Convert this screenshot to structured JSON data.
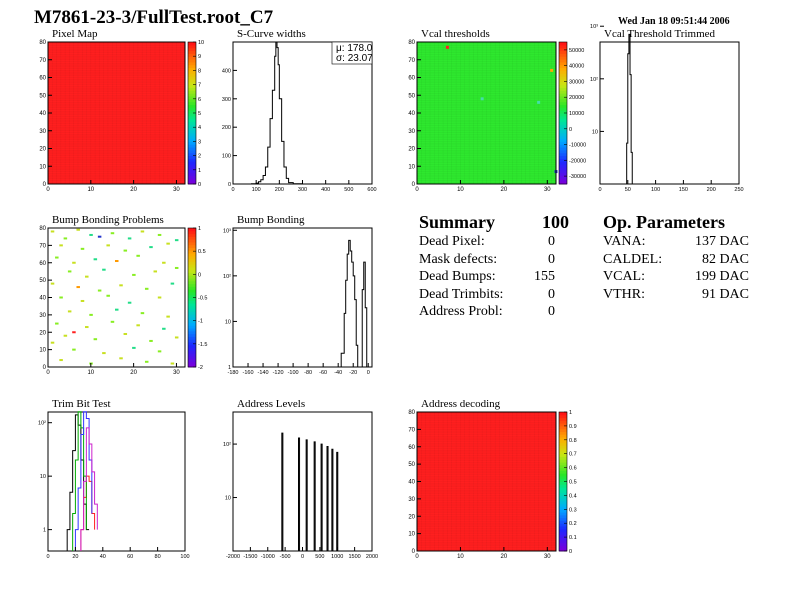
{
  "header": {
    "title": "M7861-23-3/FullTest.root_C7",
    "date": "Wed Jan 18 09:51:44 2006"
  },
  "summary": {
    "heading": "Summary",
    "total": "100",
    "rows": [
      {
        "label": "Dead Pixel:",
        "value": "0"
      },
      {
        "label": "Mask defects:",
        "value": "0"
      },
      {
        "label": "Dead Bumps:",
        "value": "155"
      },
      {
        "label": "Dead Trimbits:",
        "value": "0"
      },
      {
        "label": "Address Probl:",
        "value": "0"
      }
    ]
  },
  "op_params": {
    "heading": "Op. Parameters",
    "rows": [
      {
        "label": "VANA:",
        "value": "137 DAC"
      },
      {
        "label": "CALDEL:",
        "value": "82 DAC"
      },
      {
        "label": "VCAL:",
        "value": "199 DAC"
      },
      {
        "label": "VTHR:",
        "value": "91 DAC"
      }
    ]
  },
  "chart_data": [
    {
      "id": "pixel-map",
      "type": "heatmap",
      "title": "Pixel Map",
      "xlim": [
        0,
        32
      ],
      "ylim": [
        0,
        80
      ],
      "xticks": [
        "0",
        "10",
        "20",
        "30"
      ],
      "yticks": [
        "0",
        "10",
        "20",
        "30",
        "40",
        "50",
        "60",
        "70",
        "80"
      ],
      "zlim": [
        0,
        10
      ],
      "zticks": [
        "0",
        "1",
        "2",
        "3",
        "4",
        "5",
        "6",
        "7",
        "8",
        "9",
        "10"
      ],
      "fill_value": 10,
      "fill_color": "#ff1f1f"
    },
    {
      "id": "scurve",
      "type": "line",
      "title": "S-Curve widths",
      "xlim": [
        0,
        600
      ],
      "ylim": [
        0,
        500
      ],
      "xticks": [
        "0",
        "100",
        "200",
        "300",
        "400",
        "500",
        "600"
      ],
      "yticks": [
        "0",
        "100",
        "200",
        "300",
        "400"
      ],
      "stats": {
        "mu": "μ: 178.0",
        "sigma": "σ: 23.07"
      },
      "x": [
        60,
        80,
        100,
        110,
        120,
        130,
        140,
        150,
        160,
        170,
        180,
        185,
        190,
        195,
        200,
        210,
        220,
        230,
        240,
        260,
        300
      ],
      "y": [
        0,
        1,
        3,
        8,
        15,
        30,
        60,
        130,
        230,
        330,
        450,
        500,
        480,
        420,
        300,
        150,
        60,
        20,
        5,
        1,
        0
      ]
    },
    {
      "id": "vcal-thresholds",
      "type": "heatmap",
      "title": "Vcal thresholds",
      "xlim": [
        0,
        32
      ],
      "ylim": [
        0,
        80
      ],
      "xticks": [
        "0",
        "10",
        "20",
        "30"
      ],
      "yticks": [
        "0",
        "10",
        "20",
        "30",
        "40",
        "50",
        "60",
        "70",
        "80"
      ],
      "zlim": [
        -35000,
        55000
      ],
      "zticks": [
        "-30000",
        "-20000",
        "-10000",
        "0",
        "10000",
        "20000",
        "30000",
        "40000",
        "50000"
      ],
      "fill_value": 0,
      "fill_color": "#2ee82e",
      "outliers": [
        {
          "x": 7,
          "y": 77,
          "color": "#ff2020"
        },
        {
          "x": 31,
          "y": 64,
          "color": "#ffaa00"
        },
        {
          "x": 15,
          "y": 48,
          "color": "#44ddaa"
        },
        {
          "x": 28,
          "y": 46,
          "color": "#44ddaa"
        },
        {
          "x": 32,
          "y": 7,
          "color": "#2233cc"
        }
      ]
    },
    {
      "id": "vcal-trimmed",
      "type": "line",
      "title": "Vcal Threshold Trimmed",
      "scale": "log",
      "xlim": [
        0,
        250
      ],
      "ylim_decades": [
        0,
        2.7
      ],
      "xticks": [
        "0",
        "50",
        "100",
        "150",
        "200",
        "250"
      ],
      "yticks": [
        "10",
        "10²",
        "10³"
      ],
      "x": [
        45,
        48,
        50,
        52,
        54,
        56,
        58
      ],
      "y": [
        1,
        6,
        300,
        700,
        120,
        4,
        1
      ]
    },
    {
      "id": "bump-problems",
      "type": "heatmap",
      "title": "Bump Bonding Problems",
      "xlim": [
        0,
        32
      ],
      "ylim": [
        0,
        80
      ],
      "xticks": [
        "0",
        "10",
        "20",
        "30"
      ],
      "yticks": [
        "0",
        "10",
        "20",
        "30",
        "40",
        "50",
        "60",
        "70",
        "80"
      ],
      "zlim": [
        -2,
        1
      ],
      "zticks": [
        "-2",
        "-1.5",
        "-1",
        "-0.5",
        "0",
        "0.5",
        "1"
      ],
      "fill_color": "#ffffff",
      "scatter_points": [
        {
          "x": 1,
          "y": 78,
          "c": "#c8e020"
        },
        {
          "x": 4,
          "y": 74,
          "c": "#88ee22"
        },
        {
          "x": 7,
          "y": 79,
          "c": "#c8e020"
        },
        {
          "x": 10,
          "y": 76,
          "c": "#22dd88"
        },
        {
          "x": 12,
          "y": 75,
          "c": "#2233cc"
        },
        {
          "x": 15,
          "y": 77,
          "c": "#88ee22"
        },
        {
          "x": 19,
          "y": 74,
          "c": "#22dd88"
        },
        {
          "x": 22,
          "y": 78,
          "c": "#c8e020"
        },
        {
          "x": 26,
          "y": 76,
          "c": "#88ee22"
        },
        {
          "x": 30,
          "y": 73,
          "c": "#22dd88"
        },
        {
          "x": 3,
          "y": 70,
          "c": "#c8e020"
        },
        {
          "x": 8,
          "y": 68,
          "c": "#88ee22"
        },
        {
          "x": 14,
          "y": 70,
          "c": "#c8e020"
        },
        {
          "x": 18,
          "y": 67,
          "c": "#88ee22"
        },
        {
          "x": 24,
          "y": 69,
          "c": "#22dd88"
        },
        {
          "x": 28,
          "y": 71,
          "c": "#c8e020"
        },
        {
          "x": 2,
          "y": 63,
          "c": "#88ee22"
        },
        {
          "x": 6,
          "y": 60,
          "c": "#c8e020"
        },
        {
          "x": 11,
          "y": 62,
          "c": "#22dd88"
        },
        {
          "x": 16,
          "y": 61,
          "c": "#ff9900"
        },
        {
          "x": 21,
          "y": 64,
          "c": "#88ee22"
        },
        {
          "x": 27,
          "y": 60,
          "c": "#c8e020"
        },
        {
          "x": 5,
          "y": 55,
          "c": "#88ee22"
        },
        {
          "x": 9,
          "y": 52,
          "c": "#c8e020"
        },
        {
          "x": 13,
          "y": 56,
          "c": "#22dd88"
        },
        {
          "x": 20,
          "y": 53,
          "c": "#88ee22"
        },
        {
          "x": 25,
          "y": 55,
          "c": "#c8e020"
        },
        {
          "x": 30,
          "y": 57,
          "c": "#88ee22"
        },
        {
          "x": 1,
          "y": 48,
          "c": "#c8e020"
        },
        {
          "x": 7,
          "y": 46,
          "c": "#ff9900"
        },
        {
          "x": 12,
          "y": 44,
          "c": "#88ee22"
        },
        {
          "x": 17,
          "y": 47,
          "c": "#c8e020"
        },
        {
          "x": 23,
          "y": 45,
          "c": "#88ee22"
        },
        {
          "x": 29,
          "y": 48,
          "c": "#22dd88"
        },
        {
          "x": 3,
          "y": 40,
          "c": "#88ee22"
        },
        {
          "x": 8,
          "y": 38,
          "c": "#c8e020"
        },
        {
          "x": 14,
          "y": 41,
          "c": "#88ee22"
        },
        {
          "x": 19,
          "y": 37,
          "c": "#22dd88"
        },
        {
          "x": 26,
          "y": 40,
          "c": "#c8e020"
        },
        {
          "x": 5,
          "y": 32,
          "c": "#c8e020"
        },
        {
          "x": 10,
          "y": 30,
          "c": "#88ee22"
        },
        {
          "x": 16,
          "y": 33,
          "c": "#22dd88"
        },
        {
          "x": 22,
          "y": 31,
          "c": "#88ee22"
        },
        {
          "x": 28,
          "y": 29,
          "c": "#c8e020"
        },
        {
          "x": 2,
          "y": 25,
          "c": "#88ee22"
        },
        {
          "x": 9,
          "y": 23,
          "c": "#c8e020"
        },
        {
          "x": 15,
          "y": 26,
          "c": "#88ee22"
        },
        {
          "x": 21,
          "y": 24,
          "c": "#c8e020"
        },
        {
          "x": 27,
          "y": 22,
          "c": "#22dd88"
        },
        {
          "x": 4,
          "y": 18,
          "c": "#c8e020"
        },
        {
          "x": 11,
          "y": 16,
          "c": "#88ee22"
        },
        {
          "x": 18,
          "y": 19,
          "c": "#c8e020"
        },
        {
          "x": 24,
          "y": 15,
          "c": "#88ee22"
        },
        {
          "x": 30,
          "y": 17,
          "c": "#c8e020"
        },
        {
          "x": 6,
          "y": 10,
          "c": "#88ee22"
        },
        {
          "x": 13,
          "y": 8,
          "c": "#c8e020"
        },
        {
          "x": 20,
          "y": 11,
          "c": "#22dd88"
        },
        {
          "x": 26,
          "y": 9,
          "c": "#88ee22"
        },
        {
          "x": 3,
          "y": 4,
          "c": "#c8e020"
        },
        {
          "x": 10,
          "y": 2,
          "c": "#88ee22"
        },
        {
          "x": 17,
          "y": 5,
          "c": "#c8e020"
        },
        {
          "x": 23,
          "y": 3,
          "c": "#88ee22"
        },
        {
          "x": 29,
          "y": 2,
          "c": "#c8e020"
        },
        {
          "x": 6,
          "y": 20,
          "c": "#ff2020"
        },
        {
          "x": 1,
          "y": 14,
          "c": "#c8e020"
        }
      ]
    },
    {
      "id": "bump-bonding",
      "type": "line",
      "title": "Bump Bonding",
      "scale": "log",
      "xlim": [
        -180,
        5
      ],
      "ylim_decades": [
        0,
        3.05
      ],
      "xticks": [
        "-180",
        "-160",
        "-140",
        "-120",
        "-100",
        "-80",
        "-60",
        "-40",
        "-20",
        "0"
      ],
      "yticks": [
        "1",
        "10",
        "10²",
        "10³"
      ],
      "x": [
        -180,
        -176,
        -174,
        -168,
        -166,
        -40,
        -36,
        -32,
        -30,
        -28,
        -26,
        -24,
        -22,
        -20,
        -18,
        -16,
        -14,
        -12,
        -10,
        -8,
        -6,
        -4,
        -2,
        0
      ],
      "y": [
        0,
        1,
        0,
        1,
        0,
        0,
        2,
        15,
        80,
        300,
        600,
        350,
        200,
        100,
        30,
        3,
        0,
        0,
        0,
        50,
        200,
        20,
        1,
        0
      ]
    },
    {
      "id": "trim-bit",
      "type": "line",
      "title": "Trim Bit Test",
      "scale": "log",
      "xlim": [
        0,
        100
      ],
      "ylim_decades": [
        -0.4,
        2.2
      ],
      "xticks": [
        "0",
        "20",
        "40",
        "60",
        "80",
        "100"
      ],
      "yticks": [
        "1",
        "10",
        "10²"
      ],
      "series": [
        {
          "color": "#000000",
          "x": [
            14,
            16,
            18,
            20,
            22,
            24,
            26,
            28,
            30
          ],
          "y": [
            1,
            5,
            30,
            140,
            90,
            20,
            3,
            1,
            1
          ]
        },
        {
          "color": "#ff2020",
          "x": [
            24,
            26,
            28,
            30,
            32,
            34
          ],
          "y": [
            1,
            4,
            10,
            8,
            2,
            1
          ]
        },
        {
          "color": "#00aa00",
          "x": [
            18,
            20,
            22,
            24,
            26,
            28
          ],
          "y": [
            2,
            20,
            160,
            80,
            10,
            1
          ]
        },
        {
          "color": "#3333ff",
          "x": [
            20,
            22,
            24,
            26,
            28,
            30,
            32
          ],
          "y": [
            1,
            6,
            60,
            160,
            120,
            20,
            2
          ]
        },
        {
          "color": "#cc22cc",
          "x": [
            24,
            26,
            28,
            30,
            32,
            34,
            36
          ],
          "y": [
            1,
            8,
            80,
            40,
            12,
            3,
            1
          ]
        }
      ]
    },
    {
      "id": "address-levels",
      "type": "line",
      "title": "Address Levels",
      "scale": "log",
      "xlim": [
        -2000,
        2000
      ],
      "ylim_decades": [
        0,
        2.6
      ],
      "xticks": [
        "-2000",
        "-1500",
        "-1000",
        "-500",
        "0",
        "500",
        "1000",
        "1500",
        "2000"
      ],
      "yticks": [
        "10",
        "10²"
      ],
      "peaks": [
        {
          "x": -580,
          "y": 160
        },
        {
          "x": -100,
          "y": 130
        },
        {
          "x": 120,
          "y": 120
        },
        {
          "x": 350,
          "y": 110
        },
        {
          "x": 550,
          "y": 100
        },
        {
          "x": 720,
          "y": 90
        },
        {
          "x": 860,
          "y": 80
        },
        {
          "x": 1000,
          "y": 70
        }
      ]
    },
    {
      "id": "address-decoding",
      "type": "heatmap",
      "title": "Address decoding",
      "xlim": [
        0,
        32
      ],
      "ylim": [
        0,
        80
      ],
      "xticks": [
        "0",
        "10",
        "20",
        "30"
      ],
      "yticks": [
        "0",
        "10",
        "20",
        "30",
        "40",
        "50",
        "60",
        "70",
        "80"
      ],
      "zlim": [
        0,
        1
      ],
      "zticks": [
        "0",
        "0.1",
        "0.2",
        "0.3",
        "0.4",
        "0.5",
        "0.6",
        "0.7",
        "0.8",
        "0.9",
        "1"
      ],
      "fill_value": 1,
      "fill_color": "#ff1f1f"
    }
  ]
}
